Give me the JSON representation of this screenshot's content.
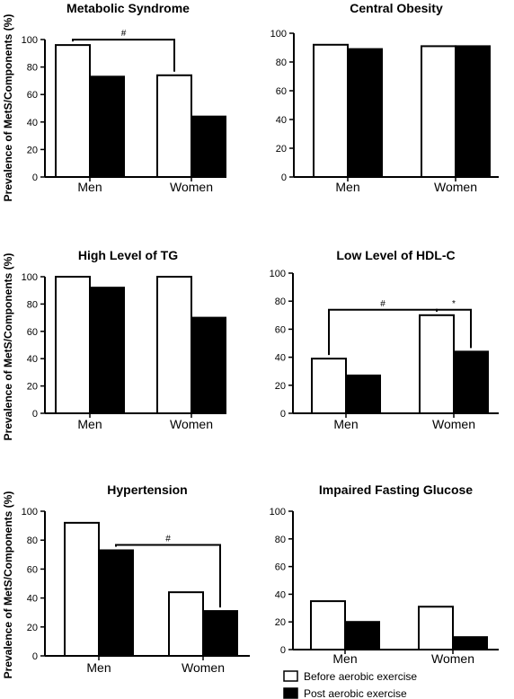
{
  "figure": {
    "ylabel": "Prevalence of MetS/Components (%)",
    "legend": [
      {
        "label": "Before aerobic exercise",
        "fill": "#ffffff"
      },
      {
        "label": "Post aerobic exercise",
        "fill": "#000000"
      }
    ]
  },
  "chart_data": [
    {
      "type": "bar",
      "title": "Metabolic Syndrome",
      "categories": [
        "Men",
        "Women"
      ],
      "series": [
        {
          "values": [
            96,
            74
          ]
        },
        {
          "values": [
            73,
            44
          ]
        }
      ],
      "ylim": [
        0,
        100
      ],
      "yticks": [
        "0",
        "20",
        "40",
        "60",
        "80",
        "100"
      ],
      "annotations": [
        {
          "text": "#",
          "from": [
            0,
            0
          ],
          "to": [
            1,
            0
          ]
        }
      ]
    },
    {
      "type": "bar",
      "title": "Central Obesity",
      "categories": [
        "Men",
        "Women"
      ],
      "series": [
        {
          "values": [
            92,
            91
          ]
        },
        {
          "values": [
            89,
            91
          ]
        }
      ],
      "ylim": [
        0,
        100
      ],
      "yticks": [
        "0",
        "20",
        "40",
        "60",
        "80",
        "100"
      ],
      "annotations": []
    },
    {
      "type": "bar",
      "title": "High Level of TG",
      "categories": [
        "Men",
        "Women"
      ],
      "series": [
        {
          "values": [
            100,
            100
          ]
        },
        {
          "values": [
            92,
            70
          ]
        }
      ],
      "ylim": [
        0,
        100
      ],
      "yticks": [
        "0",
        "20",
        "40",
        "60",
        "80",
        "100"
      ],
      "annotations": []
    },
    {
      "type": "bar",
      "title": "Low Level of HDL-C",
      "categories": [
        "Men",
        "Women"
      ],
      "series": [
        {
          "values": [
            39,
            70
          ]
        },
        {
          "values": [
            27,
            44
          ]
        }
      ],
      "ylim": [
        0,
        100
      ],
      "yticks": [
        "0",
        "20",
        "40",
        "60",
        "80",
        "100"
      ],
      "annotations": [
        {
          "text": "#",
          "from": [
            0,
            0
          ],
          "to": [
            1,
            0
          ]
        },
        {
          "text": "*",
          "from": [
            1,
            0
          ],
          "to": [
            1,
            1
          ]
        }
      ]
    },
    {
      "type": "bar",
      "title": "Hypertension",
      "categories": [
        "Men",
        "Women"
      ],
      "series": [
        {
          "values": [
            92,
            44
          ]
        },
        {
          "values": [
            73,
            31
          ]
        }
      ],
      "ylim": [
        0,
        100
      ],
      "yticks": [
        "0",
        "20",
        "40",
        "60",
        "80",
        "100"
      ],
      "annotations": [
        {
          "text": "#",
          "from": [
            0,
            1
          ],
          "to": [
            1,
            1
          ]
        }
      ]
    },
    {
      "type": "bar",
      "title": "Impaired Fasting Glucose",
      "categories": [
        "Men",
        "Women"
      ],
      "series": [
        {
          "values": [
            35,
            31
          ]
        },
        {
          "values": [
            20,
            9
          ]
        }
      ],
      "ylim": [
        0,
        100
      ],
      "yticks": [
        "0",
        "20",
        "40",
        "60",
        "80",
        "100"
      ],
      "annotations": []
    }
  ]
}
